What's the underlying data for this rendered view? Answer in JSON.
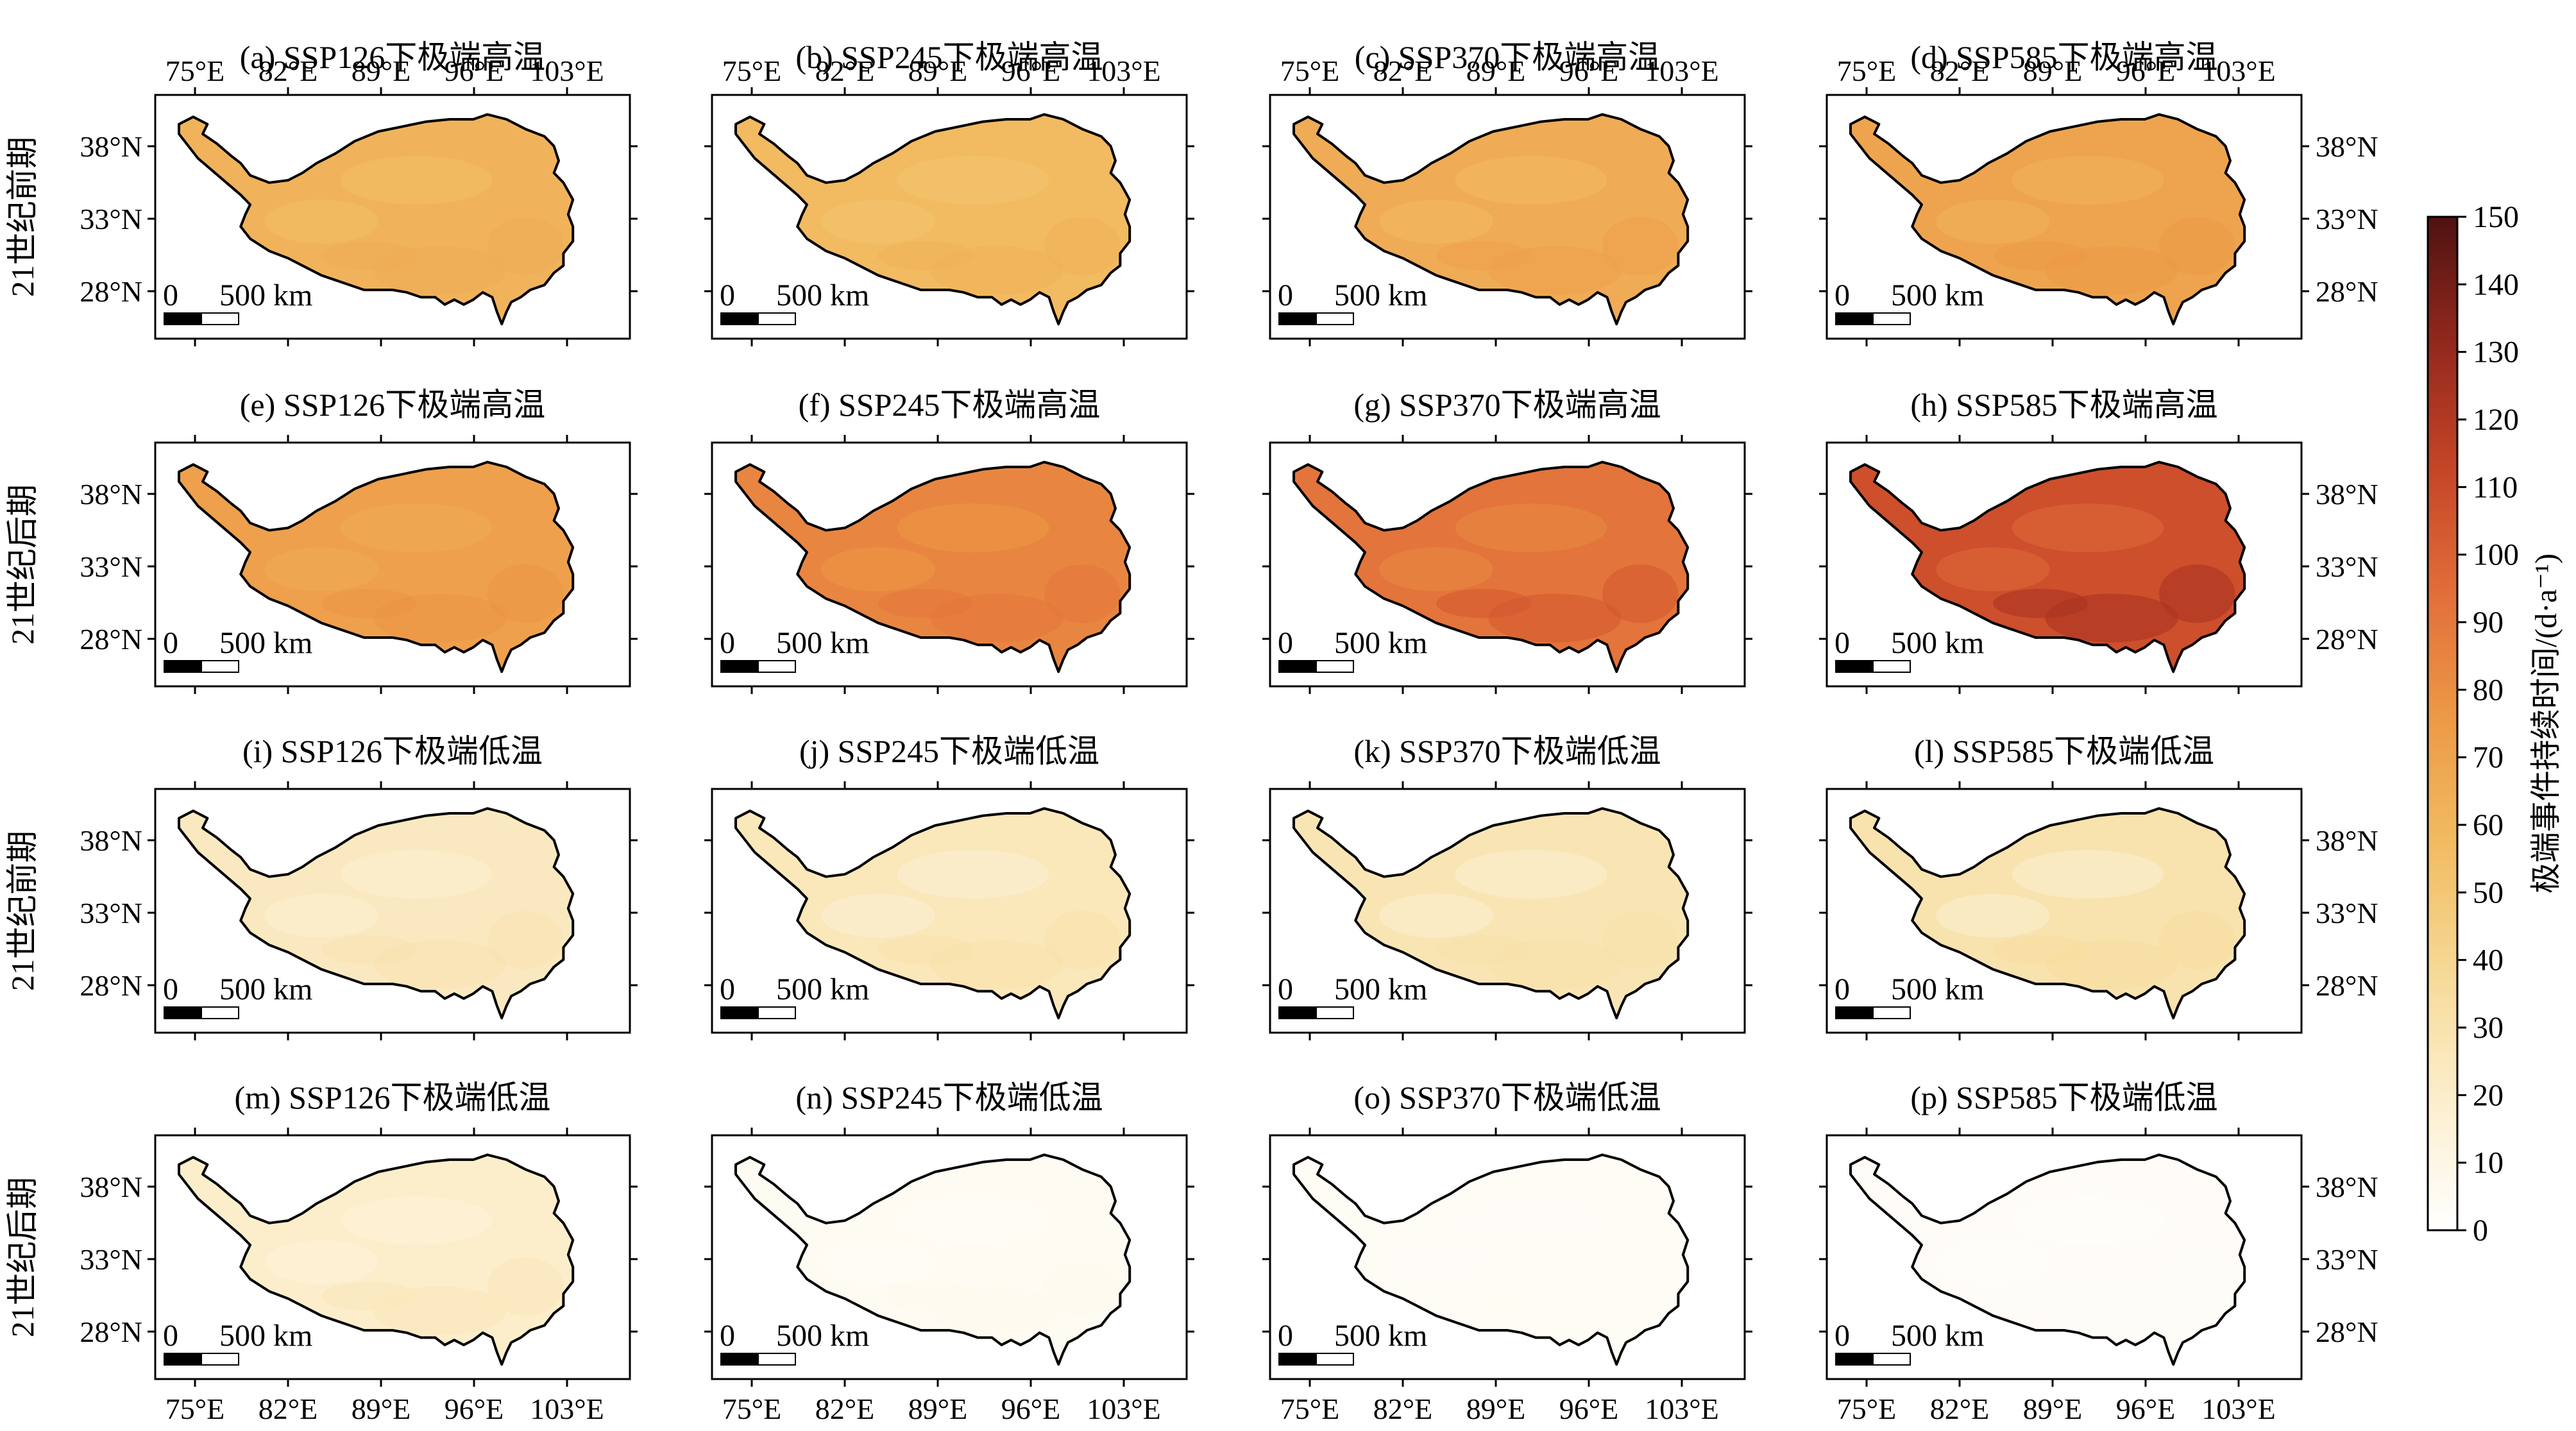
{
  "figure": {
    "lon_ticks": [
      "75°E",
      "82°E",
      "89°E",
      "96°E",
      "103°E"
    ],
    "lat_ticks": [
      "38°N",
      "33°N",
      "28°N"
    ],
    "scale_bar": {
      "zero": "0",
      "label": "500 km"
    },
    "row_labels": [
      "21世纪前期",
      "21世纪后期",
      "21世纪前期",
      "21世纪后期"
    ],
    "panels": [
      {
        "title": "(a) SSP126下极端高温",
        "mean": 62,
        "low": 56,
        "high": 66
      },
      {
        "title": "(b) SSP245下极端高温",
        "mean": 58,
        "low": 52,
        "high": 63
      },
      {
        "title": "(c) SSP370下极端高温",
        "mean": 66,
        "low": 58,
        "high": 72
      },
      {
        "title": "(d) SSP585下极端高温",
        "mean": 70,
        "low": 62,
        "high": 76
      },
      {
        "title": "(e) SSP126下极端高温",
        "mean": 72,
        "low": 66,
        "high": 78
      },
      {
        "title": "(f) SSP245下极端高温",
        "mean": 84,
        "low": 76,
        "high": 92
      },
      {
        "title": "(g) SSP370下极端高温",
        "mean": 92,
        "low": 82,
        "high": 104
      },
      {
        "title": "(h) SSP585下极端高温",
        "mean": 108,
        "low": 96,
        "high": 124
      },
      {
        "title": "(i) SSP126下极端低温",
        "mean": 24,
        "low": 18,
        "high": 30
      },
      {
        "title": "(j) SSP245下极端低温",
        "mean": 26,
        "low": 16,
        "high": 31
      },
      {
        "title": "(k) SSP370下极端低温",
        "mean": 28,
        "low": 18,
        "high": 32
      },
      {
        "title": "(l) SSP585下极端低温",
        "mean": 30,
        "low": 18,
        "high": 35
      },
      {
        "title": "(m) SSP126下极端低温",
        "mean": 20,
        "low": 14,
        "high": 26
      },
      {
        "title": "(n) SSP245下极端低温",
        "mean": 5,
        "low": 3,
        "high": 7
      },
      {
        "title": "(o) SSP370下极端低温",
        "mean": 4,
        "low": 3,
        "high": 5
      },
      {
        "title": "(p) SSP585下极端低温",
        "mean": 3,
        "low": 2,
        "high": 4
      }
    ],
    "colorbar": {
      "title": "极端事件持续时间/(d·a⁻¹)",
      "ticks": [
        "0",
        "10",
        "20",
        "30",
        "40",
        "50",
        "60",
        "70",
        "80",
        "90",
        "100",
        "110",
        "120",
        "130",
        "140",
        "150"
      ],
      "range": [
        0,
        150
      ],
      "colors": [
        "#ffffff",
        "#fcefcf",
        "#f6da98",
        "#f2bd64",
        "#ed9b47",
        "#e2703a",
        "#c64527",
        "#93281d",
        "#4f1211"
      ]
    }
  }
}
